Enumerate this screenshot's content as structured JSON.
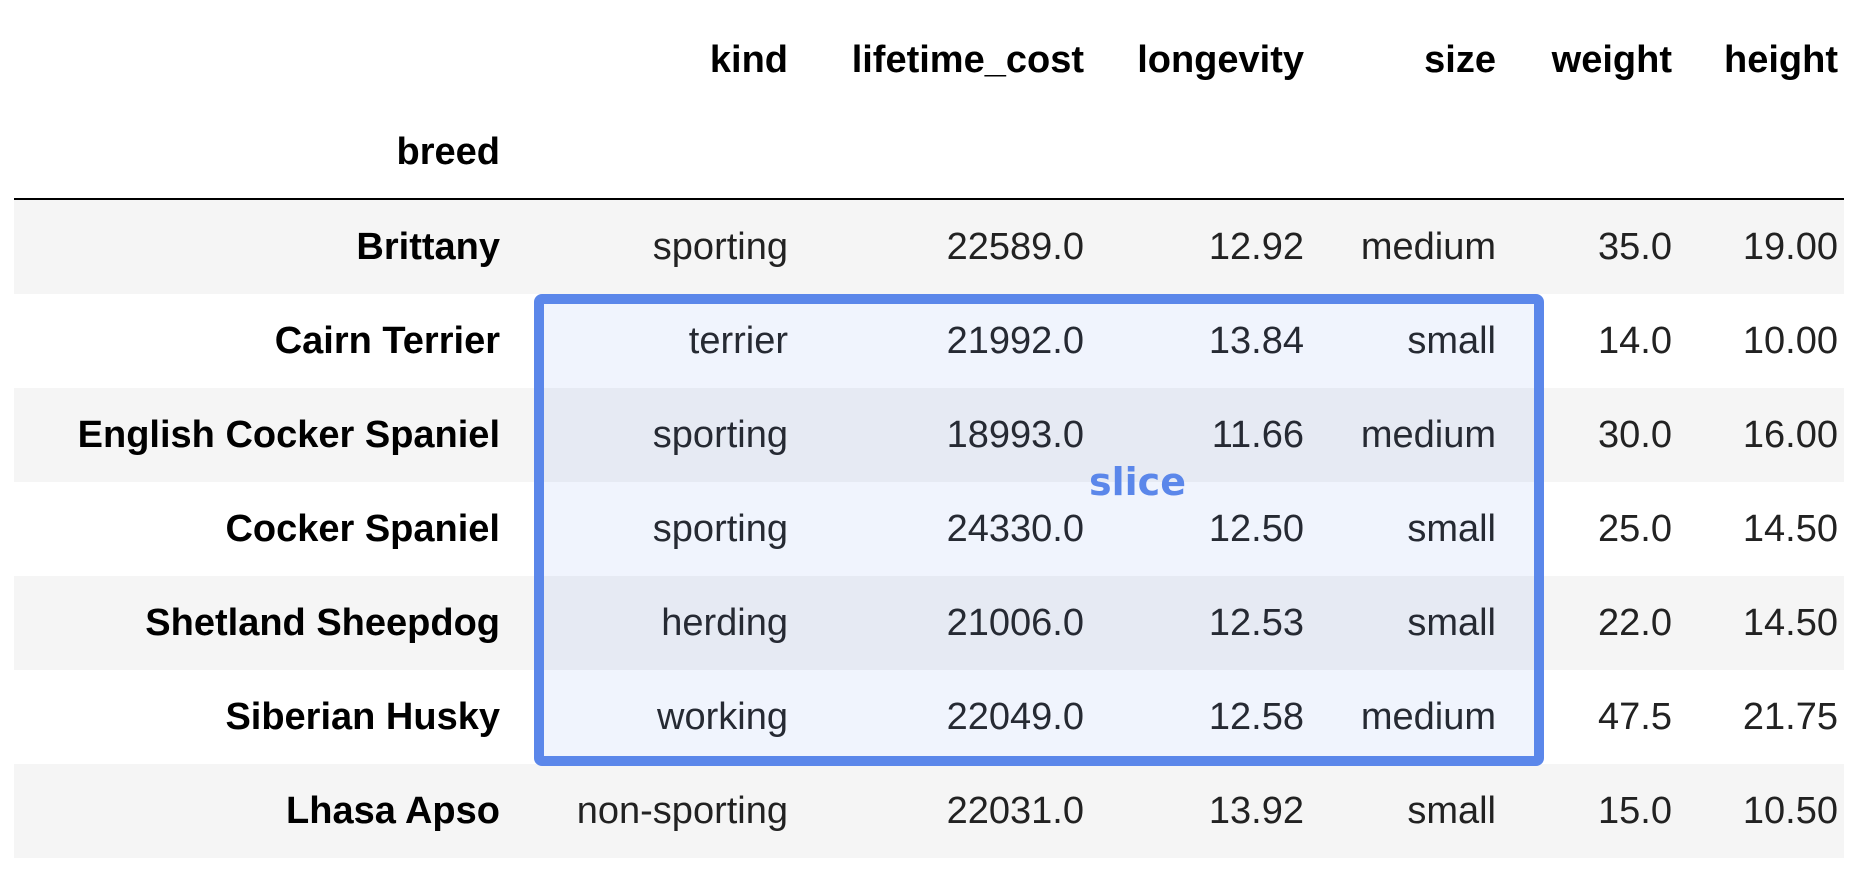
{
  "table": {
    "columns": [
      "kind",
      "lifetime_cost",
      "longevity",
      "size",
      "weight",
      "height"
    ],
    "index_name": "breed",
    "rows": [
      {
        "breed": "Brittany",
        "kind": "sporting",
        "lifetime_cost": "22589.0",
        "longevity": "12.92",
        "size": "medium",
        "weight": "35.0",
        "height": "19.00"
      },
      {
        "breed": "Cairn Terrier",
        "kind": "terrier",
        "lifetime_cost": "21992.0",
        "longevity": "13.84",
        "size": "small",
        "weight": "14.0",
        "height": "10.00"
      },
      {
        "breed": "English Cocker Spaniel",
        "kind": "sporting",
        "lifetime_cost": "18993.0",
        "longevity": "11.66",
        "size": "medium",
        "weight": "30.0",
        "height": "16.00"
      },
      {
        "breed": "Cocker Spaniel",
        "kind": "sporting",
        "lifetime_cost": "24330.0",
        "longevity": "12.50",
        "size": "small",
        "weight": "25.0",
        "height": "14.50"
      },
      {
        "breed": "Shetland Sheepdog",
        "kind": "herding",
        "lifetime_cost": "21006.0",
        "longevity": "12.53",
        "size": "small",
        "weight": "22.0",
        "height": "14.50"
      },
      {
        "breed": "Siberian Husky",
        "kind": "working",
        "lifetime_cost": "22049.0",
        "longevity": "12.58",
        "size": "medium",
        "weight": "47.5",
        "height": "21.75"
      },
      {
        "breed": "Lhasa Apso",
        "kind": "non-sporting",
        "lifetime_cost": "22031.0",
        "longevity": "13.92",
        "size": "small",
        "weight": "15.0",
        "height": "10.50"
      }
    ]
  },
  "annotation": {
    "label": "slice",
    "color": "#5b87ea"
  }
}
